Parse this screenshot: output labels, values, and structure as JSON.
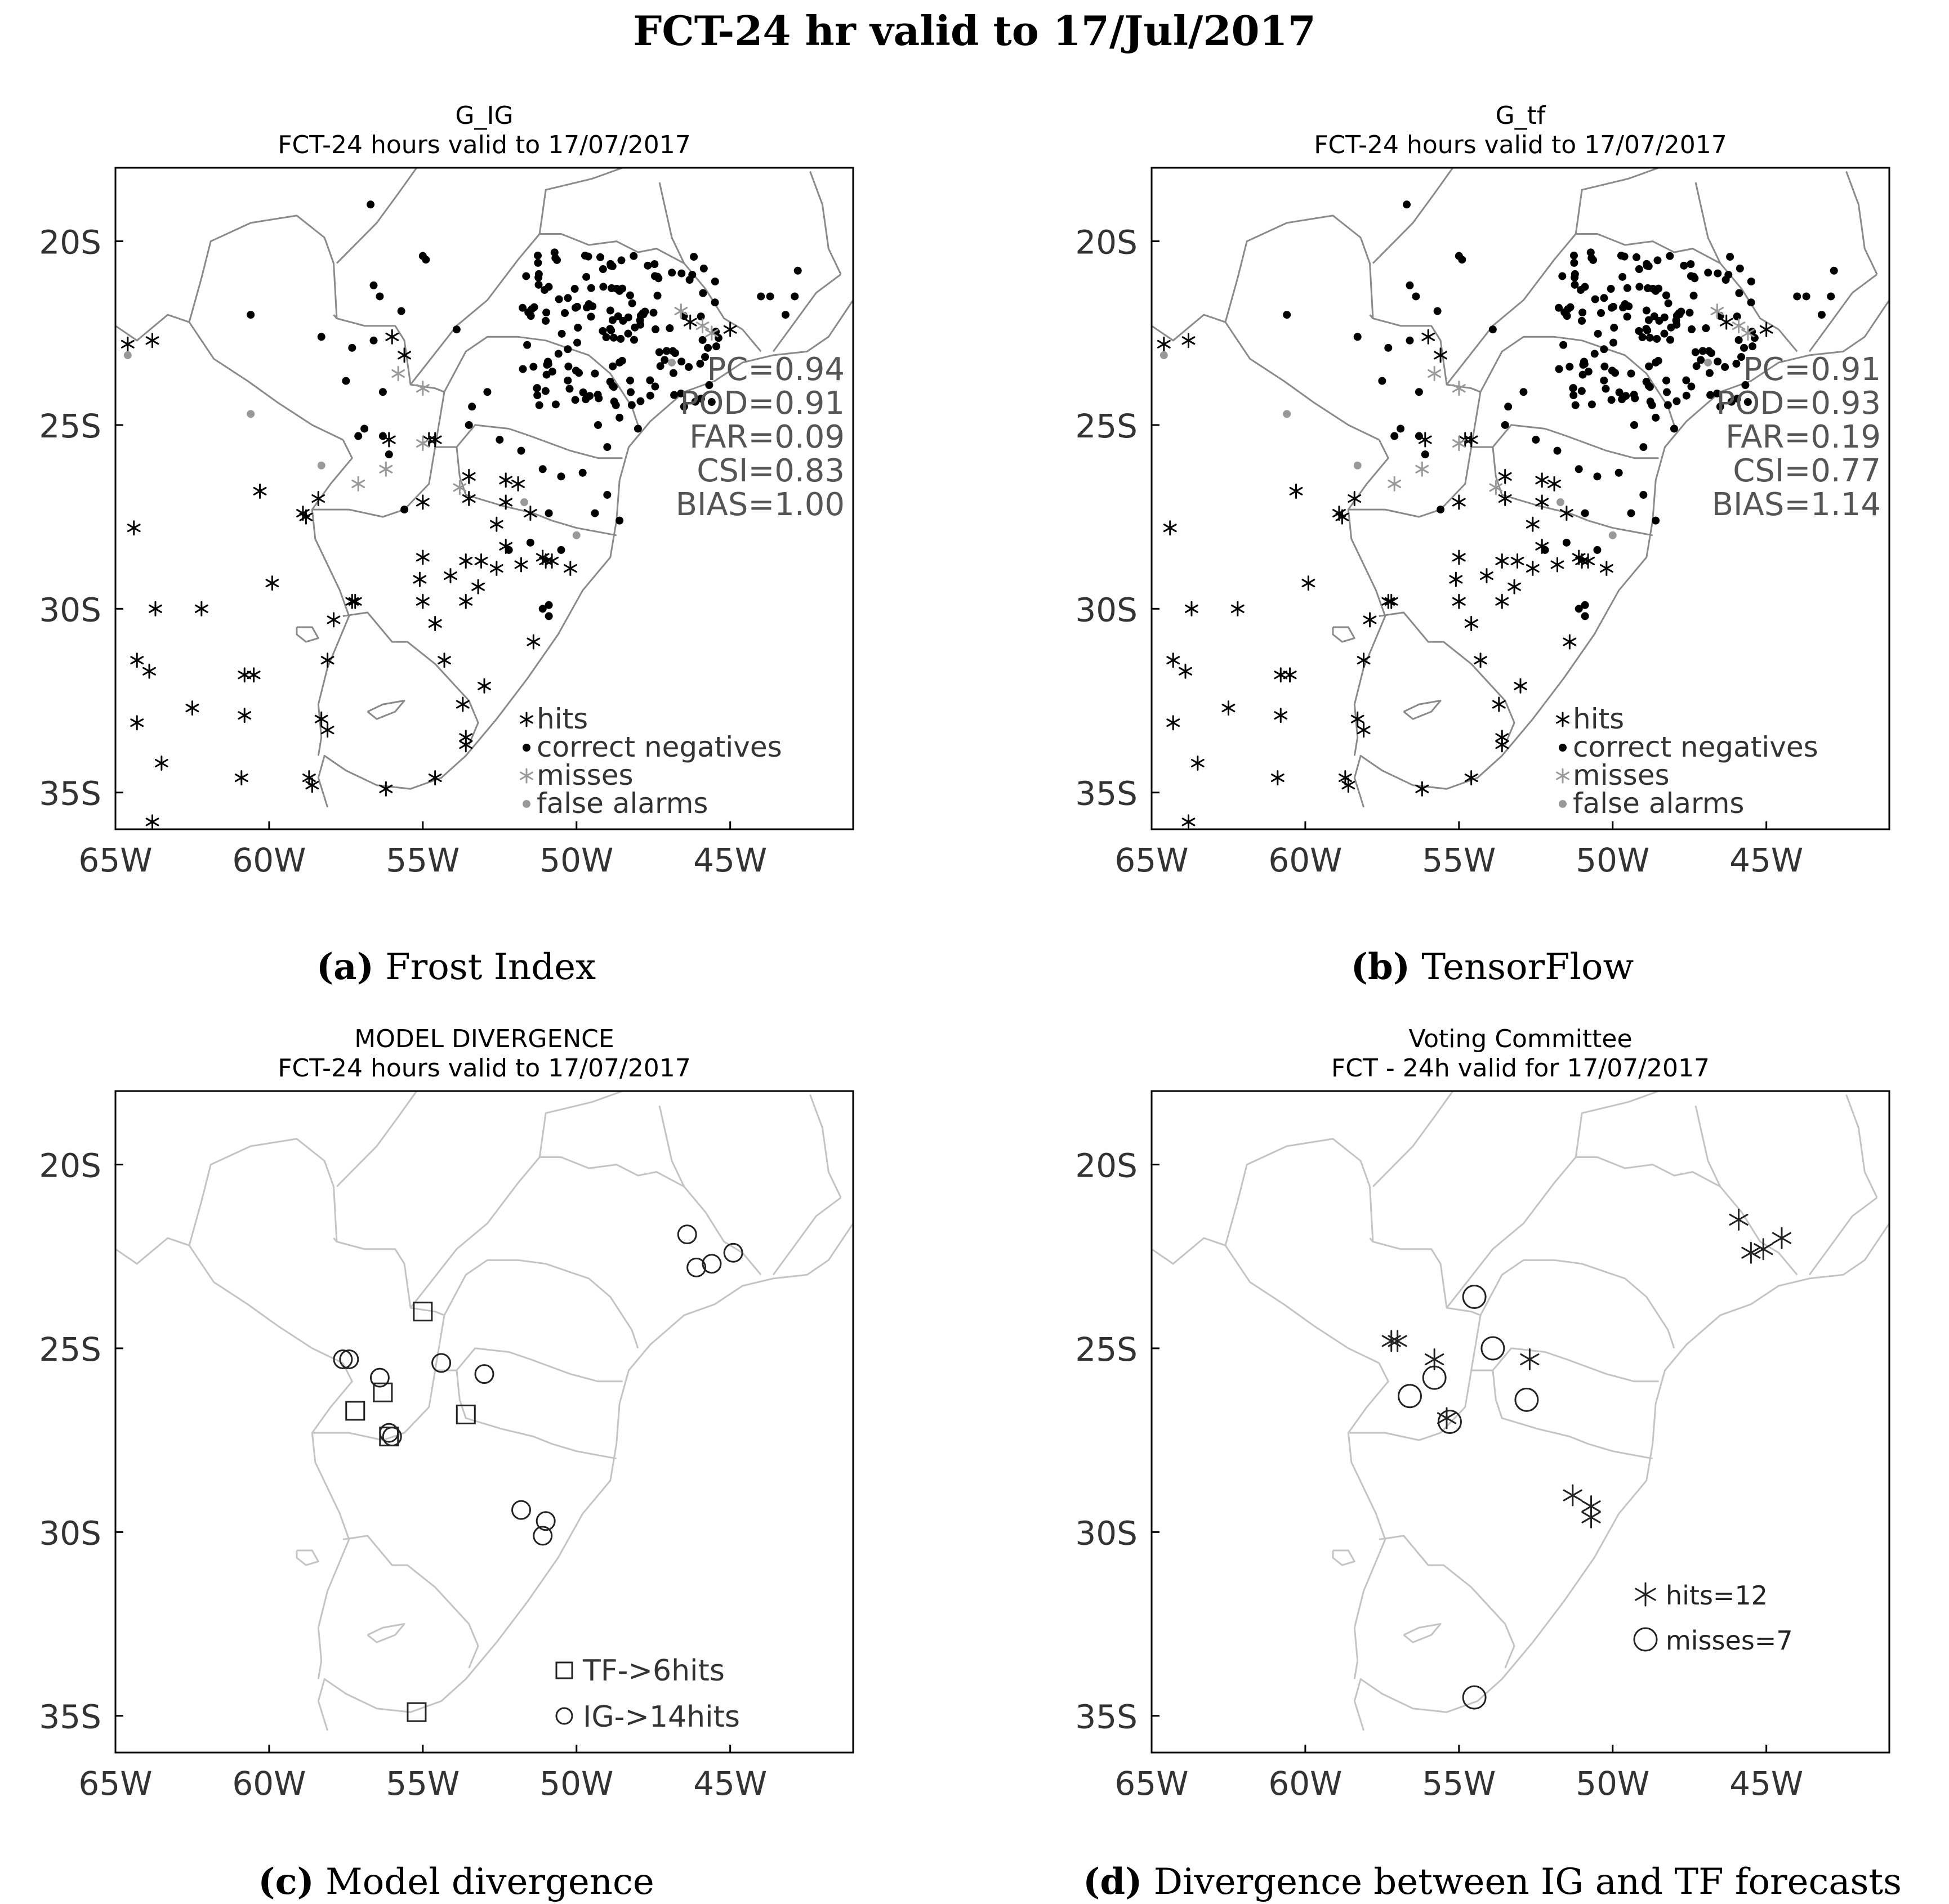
{
  "title": "FCT-24 hr valid to 17/Jul/2017",
  "axes": {
    "y_ticks": [
      "20S",
      "25S",
      "30S",
      "35S"
    ],
    "x_ticks": [
      "65W",
      "60W",
      "55W",
      "50W",
      "45W"
    ],
    "lon_range": [
      -65,
      -41
    ],
    "lat_range": [
      -18,
      -36
    ]
  },
  "panels": [
    {
      "id": "a",
      "caption_label": "(a)",
      "caption_text": "Frost Index",
      "title_line1": "G_IG",
      "title_line2": "FCT-24 hours valid to 17/07/2017",
      "stats": [
        "PC=0.94",
        "POD=0.91",
        "FAR=0.09",
        "CSI=0.83",
        "BIAS=1.00"
      ],
      "legend": [
        "hits",
        "correct negatives",
        "misses",
        "false alarms"
      ]
    },
    {
      "id": "b",
      "caption_label": "(b)",
      "caption_text": "TensorFlow",
      "title_line1": "G_tf",
      "title_line2": "FCT-24 hours valid to 17/07/2017",
      "stats": [
        "PC=0.91",
        "POD=0.93",
        "FAR=0.19",
        "CSI=0.77",
        "BIAS=1.14"
      ],
      "legend": [
        "hits",
        "correct negatives",
        "misses",
        "false alarms"
      ]
    },
    {
      "id": "c",
      "caption_label": "(c)",
      "caption_text": "Model divergence",
      "title_line1": "MODEL DIVERGENCE",
      "title_line2": "FCT-24 hours valid to 17/07/2017",
      "legend": [
        "TF->6hits",
        "IG->14hits"
      ],
      "squares": [
        [
          -55.0,
          -24.0
        ],
        [
          -57.2,
          -26.7
        ],
        [
          -56.3,
          -26.2
        ],
        [
          -53.6,
          -26.8
        ],
        [
          -55.2,
          -34.9
        ],
        [
          -56.1,
          -27.4
        ]
      ],
      "circles": [
        [
          -46.4,
          -21.9
        ],
        [
          -46.1,
          -22.8
        ],
        [
          -45.6,
          -22.7
        ],
        [
          -44.9,
          -22.4
        ],
        [
          -57.6,
          -25.3
        ],
        [
          -57.4,
          -25.3
        ],
        [
          -56.4,
          -25.8
        ],
        [
          -54.4,
          -25.4
        ],
        [
          -53.0,
          -25.7
        ],
        [
          -56.0,
          -27.4
        ],
        [
          -51.8,
          -29.4
        ],
        [
          -51.0,
          -29.7
        ],
        [
          -51.1,
          -30.1
        ],
        [
          -56.1,
          -27.3
        ]
      ]
    },
    {
      "id": "d",
      "caption_label": "(d)",
      "caption_text": "Divergence between IG and TF forecasts",
      "title_line1": "Voting Committee",
      "title_line2": "FCT - 24h valid for 17/07/2017",
      "legend": [
        "hits=12",
        "misses=7"
      ],
      "stars": [
        [
          -45.9,
          -21.5
        ],
        [
          -45.5,
          -22.4
        ],
        [
          -45.1,
          -22.3
        ],
        [
          -44.5,
          -22.0
        ],
        [
          -57.2,
          -24.8
        ],
        [
          -57.0,
          -24.8
        ],
        [
          -55.8,
          -25.3
        ],
        [
          -52.7,
          -25.3
        ],
        [
          -55.4,
          -26.9
        ],
        [
          -51.3,
          -29.0
        ],
        [
          -50.7,
          -29.3
        ],
        [
          -50.7,
          -29.6
        ]
      ],
      "circles": [
        [
          -54.5,
          -23.6
        ],
        [
          -53.9,
          -25.0
        ],
        [
          -56.6,
          -26.3
        ],
        [
          -55.8,
          -25.8
        ],
        [
          -55.3,
          -27.0
        ],
        [
          -52.8,
          -26.4
        ],
        [
          -54.5,
          -34.5
        ]
      ]
    }
  ]
}
